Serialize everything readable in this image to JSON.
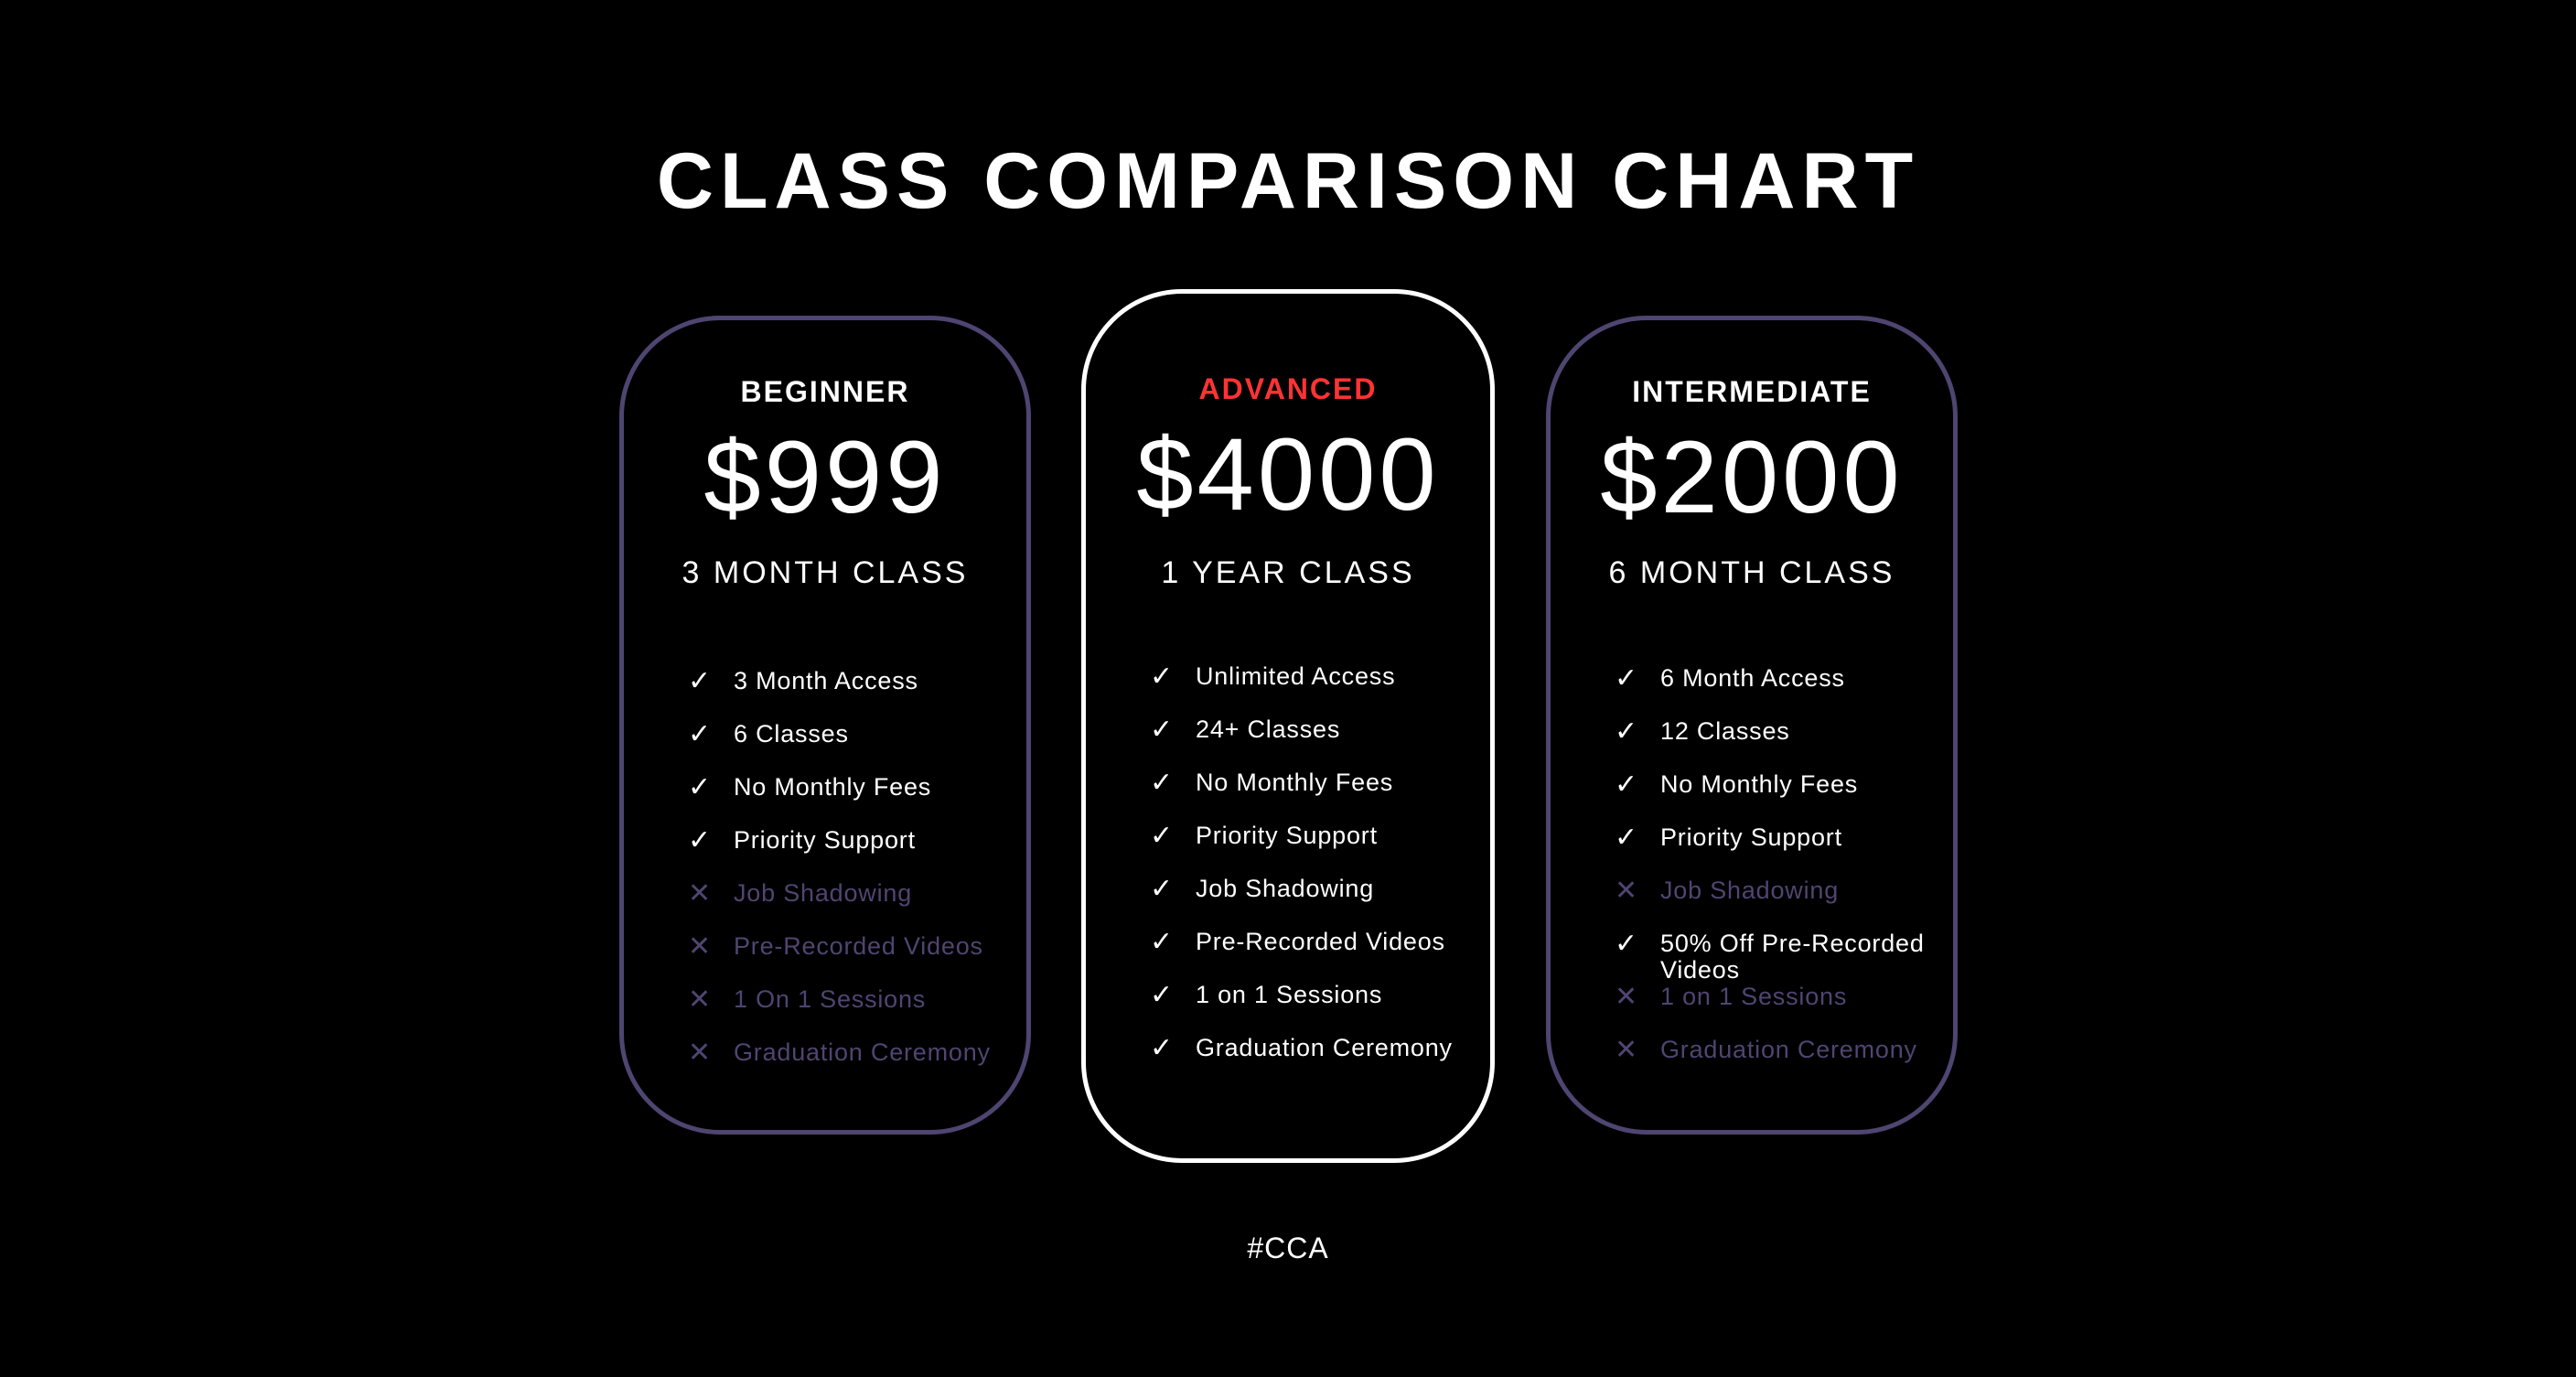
{
  "title": "CLASS COMPARISON CHART",
  "colors": {
    "background": "#000000",
    "card_border": "#4f4571",
    "featured_border": "#ffffff",
    "featured_label": "#ff3333",
    "excluded_text": "#4f4571"
  },
  "cards": [
    {
      "label": "BEGINNER",
      "price": "$999",
      "duration": "3 MONTH CLASS",
      "featured": false,
      "features": [
        {
          "text": "3 Month Access",
          "included": true,
          "icon": "check-icon"
        },
        {
          "text": "6 Classes",
          "included": true,
          "icon": "check-icon"
        },
        {
          "text": "No Monthly Fees",
          "included": true,
          "icon": "check-icon"
        },
        {
          "text": "Priority Support",
          "included": true,
          "icon": "check-icon"
        },
        {
          "text": "Job Shadowing",
          "included": false,
          "icon": "x-icon"
        },
        {
          "text": "Pre-Recorded Videos",
          "included": false,
          "icon": "x-icon"
        },
        {
          "text": "1 On 1 Sessions",
          "included": false,
          "icon": "x-icon"
        },
        {
          "text": "Graduation Ceremony",
          "included": false,
          "icon": "x-icon"
        }
      ]
    },
    {
      "label": "ADVANCED",
      "price": "$4000",
      "duration": "1 YEAR CLASS",
      "featured": true,
      "features": [
        {
          "text": "Unlimited Access",
          "included": true,
          "icon": "check-icon"
        },
        {
          "text": "24+ Classes",
          "included": true,
          "icon": "check-icon"
        },
        {
          "text": "No Monthly Fees",
          "included": true,
          "icon": "check-icon"
        },
        {
          "text": "Priority Support",
          "included": true,
          "icon": "check-icon"
        },
        {
          "text": "Job Shadowing",
          "included": true,
          "icon": "check-icon"
        },
        {
          "text": "Pre-Recorded Videos",
          "included": true,
          "icon": "check-icon"
        },
        {
          "text": "1 on 1 Sessions",
          "included": true,
          "icon": "check-icon"
        },
        {
          "text": "Graduation Ceremony",
          "included": true,
          "icon": "check-icon"
        }
      ]
    },
    {
      "label": "INTERMEDIATE",
      "price": "$2000",
      "duration": "6 MONTH CLASS",
      "featured": false,
      "features": [
        {
          "text": "6 Month Access",
          "included": true,
          "icon": "check-icon"
        },
        {
          "text": "12 Classes",
          "included": true,
          "icon": "check-icon"
        },
        {
          "text": "No Monthly Fees",
          "included": true,
          "icon": "check-icon"
        },
        {
          "text": "Priority Support",
          "included": true,
          "icon": "check-icon"
        },
        {
          "text": "Job Shadowing",
          "included": false,
          "icon": "x-icon"
        },
        {
          "text": "50% Off Pre-Recorded Videos",
          "included": true,
          "icon": "check-icon"
        },
        {
          "text": "1 on 1 Sessions",
          "included": false,
          "icon": "x-icon"
        },
        {
          "text": "Graduation Ceremony",
          "included": false,
          "icon": "x-icon"
        }
      ]
    }
  ],
  "footer": "#CCA"
}
